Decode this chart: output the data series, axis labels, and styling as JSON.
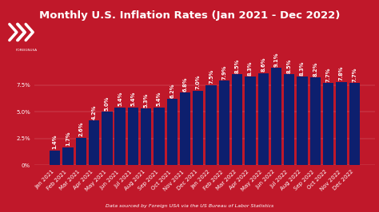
{
  "title": "Monthly U.S. Inflation Rates (Jan 2021 - Dec 2022)",
  "subtitle": "Data sourced by Foreign USA via the US Bureau of Labor Statistics",
  "categories": [
    "Jan 2021",
    "Feb 2021",
    "Mar 2021",
    "Apr 2021",
    "May 2021",
    "Jun 2021",
    "Jul 2021",
    "Aug 2021",
    "Sep 2021",
    "Oct 2021",
    "Nov 2021",
    "Dec 2021",
    "Jan 2022",
    "Feb 2022",
    "Mar 2022",
    "Apr 2022",
    "May 2022",
    "Jun 2022",
    "Jul 2022",
    "Aug 2022",
    "Sep 2022",
    "Oct 2022",
    "Nov 2022",
    "Dec 2022"
  ],
  "values": [
    1.4,
    1.7,
    2.6,
    4.2,
    5.0,
    5.4,
    5.4,
    5.3,
    5.4,
    6.2,
    6.8,
    7.0,
    7.5,
    7.9,
    8.5,
    8.3,
    8.6,
    9.1,
    8.5,
    8.3,
    8.2,
    7.7,
    7.8,
    7.7
  ],
  "bar_color": "#0d1f6e",
  "background_color": "#c0182a",
  "text_color": "#ffffff",
  "yticks": [
    0,
    2.5,
    5.0,
    7.5
  ],
  "ylim": [
    0,
    11.5
  ],
  "title_fontsize": 9.5,
  "label_fontsize": 4.8,
  "tick_fontsize": 5.0,
  "subtitle_fontsize": 4.5,
  "logo_text": "FOREIGNUSA"
}
